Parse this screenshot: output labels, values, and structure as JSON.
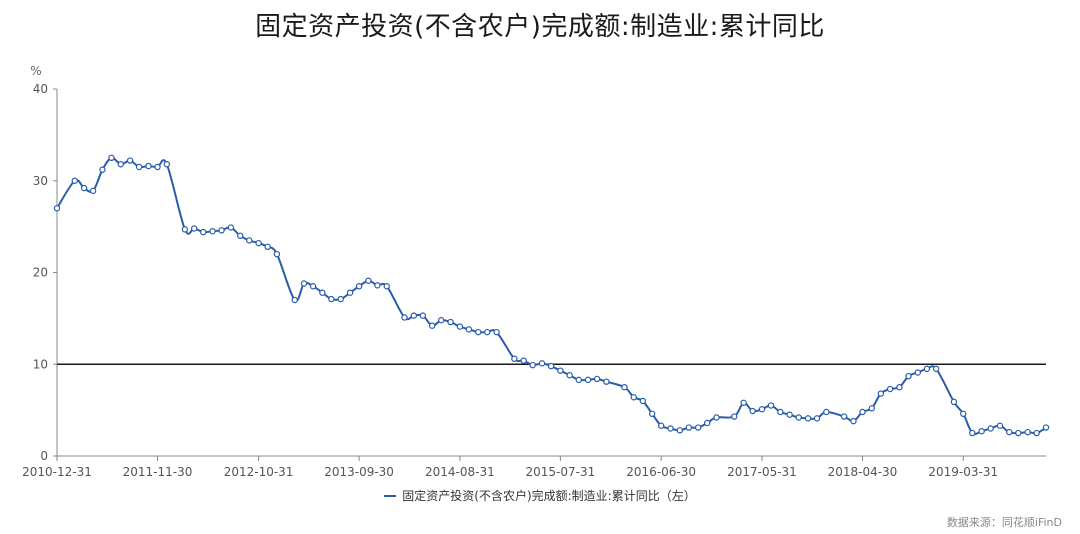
{
  "chart_data": {
    "type": "line",
    "title": "固定资产投资(不含农户)完成额:制造业:累计同比",
    "ylabel": "%",
    "ylim": [
      0,
      40
    ],
    "yticks": [
      "0",
      "10",
      "20",
      "30",
      "40"
    ],
    "xticks": [
      "2010-12-31",
      "2011-11-30",
      "2012-10-31",
      "2013-09-30",
      "2014-08-31",
      "2015-07-31",
      "2016-06-30",
      "2017-05-31",
      "2018-04-30",
      "2019-03-31"
    ],
    "xstart": "2010-12-31",
    "xend": "2019-12-31",
    "reference_line": 10,
    "grid": false,
    "legend_position": "bottom-center",
    "series": [
      {
        "name": "固定资产投资(不含农户)完成额:制造业:累计同比（左）",
        "color": "#2b5da8",
        "dates": [
          "2010-12-31",
          "2011-02-28",
          "2011-03-31",
          "2011-04-30",
          "2011-05-31",
          "2011-06-30",
          "2011-07-31",
          "2011-08-31",
          "2011-09-30",
          "2011-10-31",
          "2011-11-30",
          "2011-12-31",
          "2012-02-29",
          "2012-03-31",
          "2012-04-30",
          "2012-05-31",
          "2012-06-30",
          "2012-07-31",
          "2012-08-31",
          "2012-09-30",
          "2012-10-31",
          "2012-11-30",
          "2012-12-31",
          "2013-02-28",
          "2013-03-31",
          "2013-04-30",
          "2013-05-31",
          "2013-06-30",
          "2013-07-31",
          "2013-08-31",
          "2013-09-30",
          "2013-10-31",
          "2013-11-30",
          "2013-12-31",
          "2014-02-28",
          "2014-03-31",
          "2014-04-30",
          "2014-05-31",
          "2014-06-30",
          "2014-07-31",
          "2014-08-31",
          "2014-09-30",
          "2014-10-31",
          "2014-11-30",
          "2014-12-31",
          "2015-02-28",
          "2015-03-31",
          "2015-04-30",
          "2015-05-31",
          "2015-06-30",
          "2015-07-31",
          "2015-08-31",
          "2015-09-30",
          "2015-10-31",
          "2015-11-30",
          "2015-12-31",
          "2016-02-29",
          "2016-03-31",
          "2016-04-30",
          "2016-05-31",
          "2016-06-30",
          "2016-07-31",
          "2016-08-31",
          "2016-09-30",
          "2016-10-31",
          "2016-11-30",
          "2016-12-31",
          "2017-02-28",
          "2017-03-31",
          "2017-04-30",
          "2017-05-31",
          "2017-06-30",
          "2017-07-31",
          "2017-08-31",
          "2017-09-30",
          "2017-10-31",
          "2017-11-30",
          "2017-12-31",
          "2018-02-28",
          "2018-03-31",
          "2018-04-30",
          "2018-05-31",
          "2018-06-30",
          "2018-07-31",
          "2018-08-31",
          "2018-09-30",
          "2018-10-31",
          "2018-11-30",
          "2018-12-31",
          "2019-02-28",
          "2019-03-31",
          "2019-04-30",
          "2019-05-31",
          "2019-06-30",
          "2019-07-31",
          "2019-08-31",
          "2019-09-30",
          "2019-10-31",
          "2019-11-30",
          "2019-12-31"
        ],
        "values": [
          27.0,
          30.0,
          29.2,
          28.9,
          31.2,
          32.5,
          31.8,
          32.2,
          31.5,
          31.6,
          31.5,
          31.8,
          24.7,
          24.8,
          24.4,
          24.5,
          24.6,
          24.9,
          24.0,
          23.5,
          23.2,
          22.8,
          22.0,
          17.0,
          18.8,
          18.5,
          17.8,
          17.1,
          17.1,
          17.8,
          18.5,
          19.1,
          18.6,
          18.5,
          15.1,
          15.3,
          15.3,
          14.2,
          14.8,
          14.6,
          14.1,
          13.8,
          13.5,
          13.5,
          13.5,
          10.6,
          10.4,
          9.9,
          10.1,
          9.8,
          9.3,
          8.8,
          8.3,
          8.3,
          8.4,
          8.1,
          7.5,
          6.4,
          6.0,
          4.6,
          3.3,
          3.0,
          2.8,
          3.1,
          3.1,
          3.6,
          4.2,
          4.3,
          5.8,
          4.9,
          5.1,
          5.5,
          4.8,
          4.5,
          4.2,
          4.1,
          4.1,
          4.8,
          4.3,
          3.8,
          4.8,
          5.2,
          6.8,
          7.3,
          7.5,
          8.7,
          9.1,
          9.5,
          9.5,
          5.9,
          4.6,
          2.5,
          2.7,
          3.0,
          3.3,
          2.6,
          2.5,
          2.6,
          2.5,
          3.1
        ]
      }
    ]
  },
  "footer": {
    "source": "数据来源：同花顺iFinD"
  }
}
